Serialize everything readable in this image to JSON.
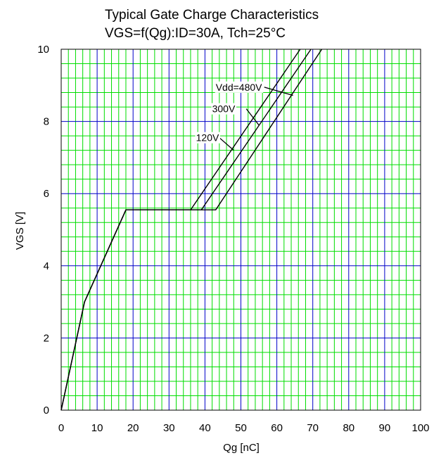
{
  "chart_data": {
    "type": "line",
    "title": "Typical Gate Charge Characteristics",
    "subtitle": "VGS=f(Qg):ID=30A, Tch=25°C",
    "xlabel": "Qg [nC]",
    "ylabel": "VGS [V]",
    "xlim": [
      0,
      100
    ],
    "ylim": [
      0,
      10
    ],
    "x_ticks": [
      "0",
      "10",
      "20",
      "30",
      "40",
      "50",
      "60",
      "70",
      "80",
      "90",
      "100"
    ],
    "y_ticks": [
      "0",
      "2",
      "4",
      "6",
      "8",
      "10"
    ],
    "grid": {
      "major": true,
      "minor": true,
      "major_color": "#0000c8",
      "minor_color": "#00dd00"
    },
    "line_color": "#000000",
    "series": [
      {
        "name": "Vdd=480V",
        "x": [
          0,
          6.5,
          18,
          43,
          72.5
        ],
        "y": [
          0,
          3.0,
          5.55,
          5.55,
          10
        ]
      },
      {
        "name": "300V",
        "x": [
          0,
          6.5,
          18,
          39,
          69.5
        ],
        "y": [
          0,
          3.0,
          5.55,
          5.55,
          10
        ]
      },
      {
        "name": "120V",
        "x": [
          0,
          6.5,
          18,
          36,
          66.5
        ],
        "y": [
          0,
          3.0,
          5.55,
          5.55,
          10
        ]
      }
    ],
    "annotations": [
      {
        "label": "Vdd=480V",
        "series": "Vdd=480V",
        "text_x": 43,
        "text_y": 8.95,
        "leader_from_x": 56.5,
        "leader_from_y": 8.95,
        "leader_to_x": 64.5,
        "leader_to_y": 8.72
      },
      {
        "label": "300V",
        "series": "300V",
        "text_x": 42,
        "text_y": 8.35,
        "leader_from_x": 51.5,
        "leader_from_y": 8.35,
        "leader_to_x": 55,
        "leader_to_y": 7.9
      },
      {
        "label": "120V",
        "series": "120V",
        "text_x": 37.5,
        "text_y": 7.55,
        "leader_from_x": 44,
        "leader_from_y": 7.55,
        "leader_to_x": 48,
        "leader_to_y": 7.2
      }
    ]
  }
}
